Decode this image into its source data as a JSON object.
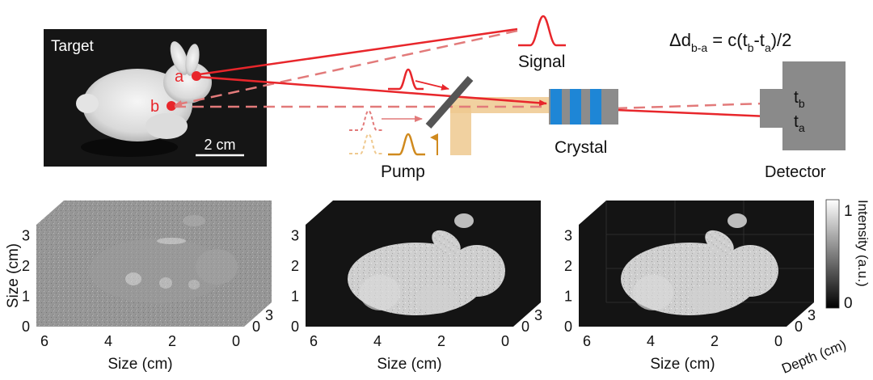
{
  "schematic": {
    "target_label": "Target",
    "point_a": "a",
    "point_b": "b",
    "scale_bar": "2 cm",
    "signal_label": "Signal",
    "pump_label": "Pump",
    "crystal_label": "Crystal",
    "detector_label": "Detector",
    "equation_delta": "Δd",
    "equation_delta_sub": "b-a",
    "equation_rhs_1": " = c(t",
    "equation_rhs_2": "-t",
    "equation_rhs_3": ")/2",
    "eq_sub_b": "b",
    "eq_sub_a": "a",
    "t_char": "t",
    "tb_sub": "b",
    "ta_sub": "a",
    "colors": {
      "signal_red": "#e8262b",
      "signal_red_faded": "#e27a7a",
      "pump_orange": "#d08a1e",
      "pump_beam": "#efc98f",
      "crystal_blue": "#1e86d6",
      "crystal_gray": "#8c8c8c",
      "detector_gray": "#8a8a8a",
      "mirror_gray": "#555555"
    }
  },
  "panels": {
    "y_axis_label": "Size (cm)",
    "x_axis_label": "Size (cm)",
    "depth_axis_label": "Depth (cm)",
    "y_ticks": [
      "0",
      "1",
      "2",
      "3"
    ],
    "x_ticks": [
      "6",
      "4",
      "2",
      "0"
    ],
    "depth_ticks": [
      "0",
      "3"
    ],
    "colorbar_label": "Intensity (a.u.)",
    "colorbar_max": "1",
    "colorbar_min": "0"
  }
}
